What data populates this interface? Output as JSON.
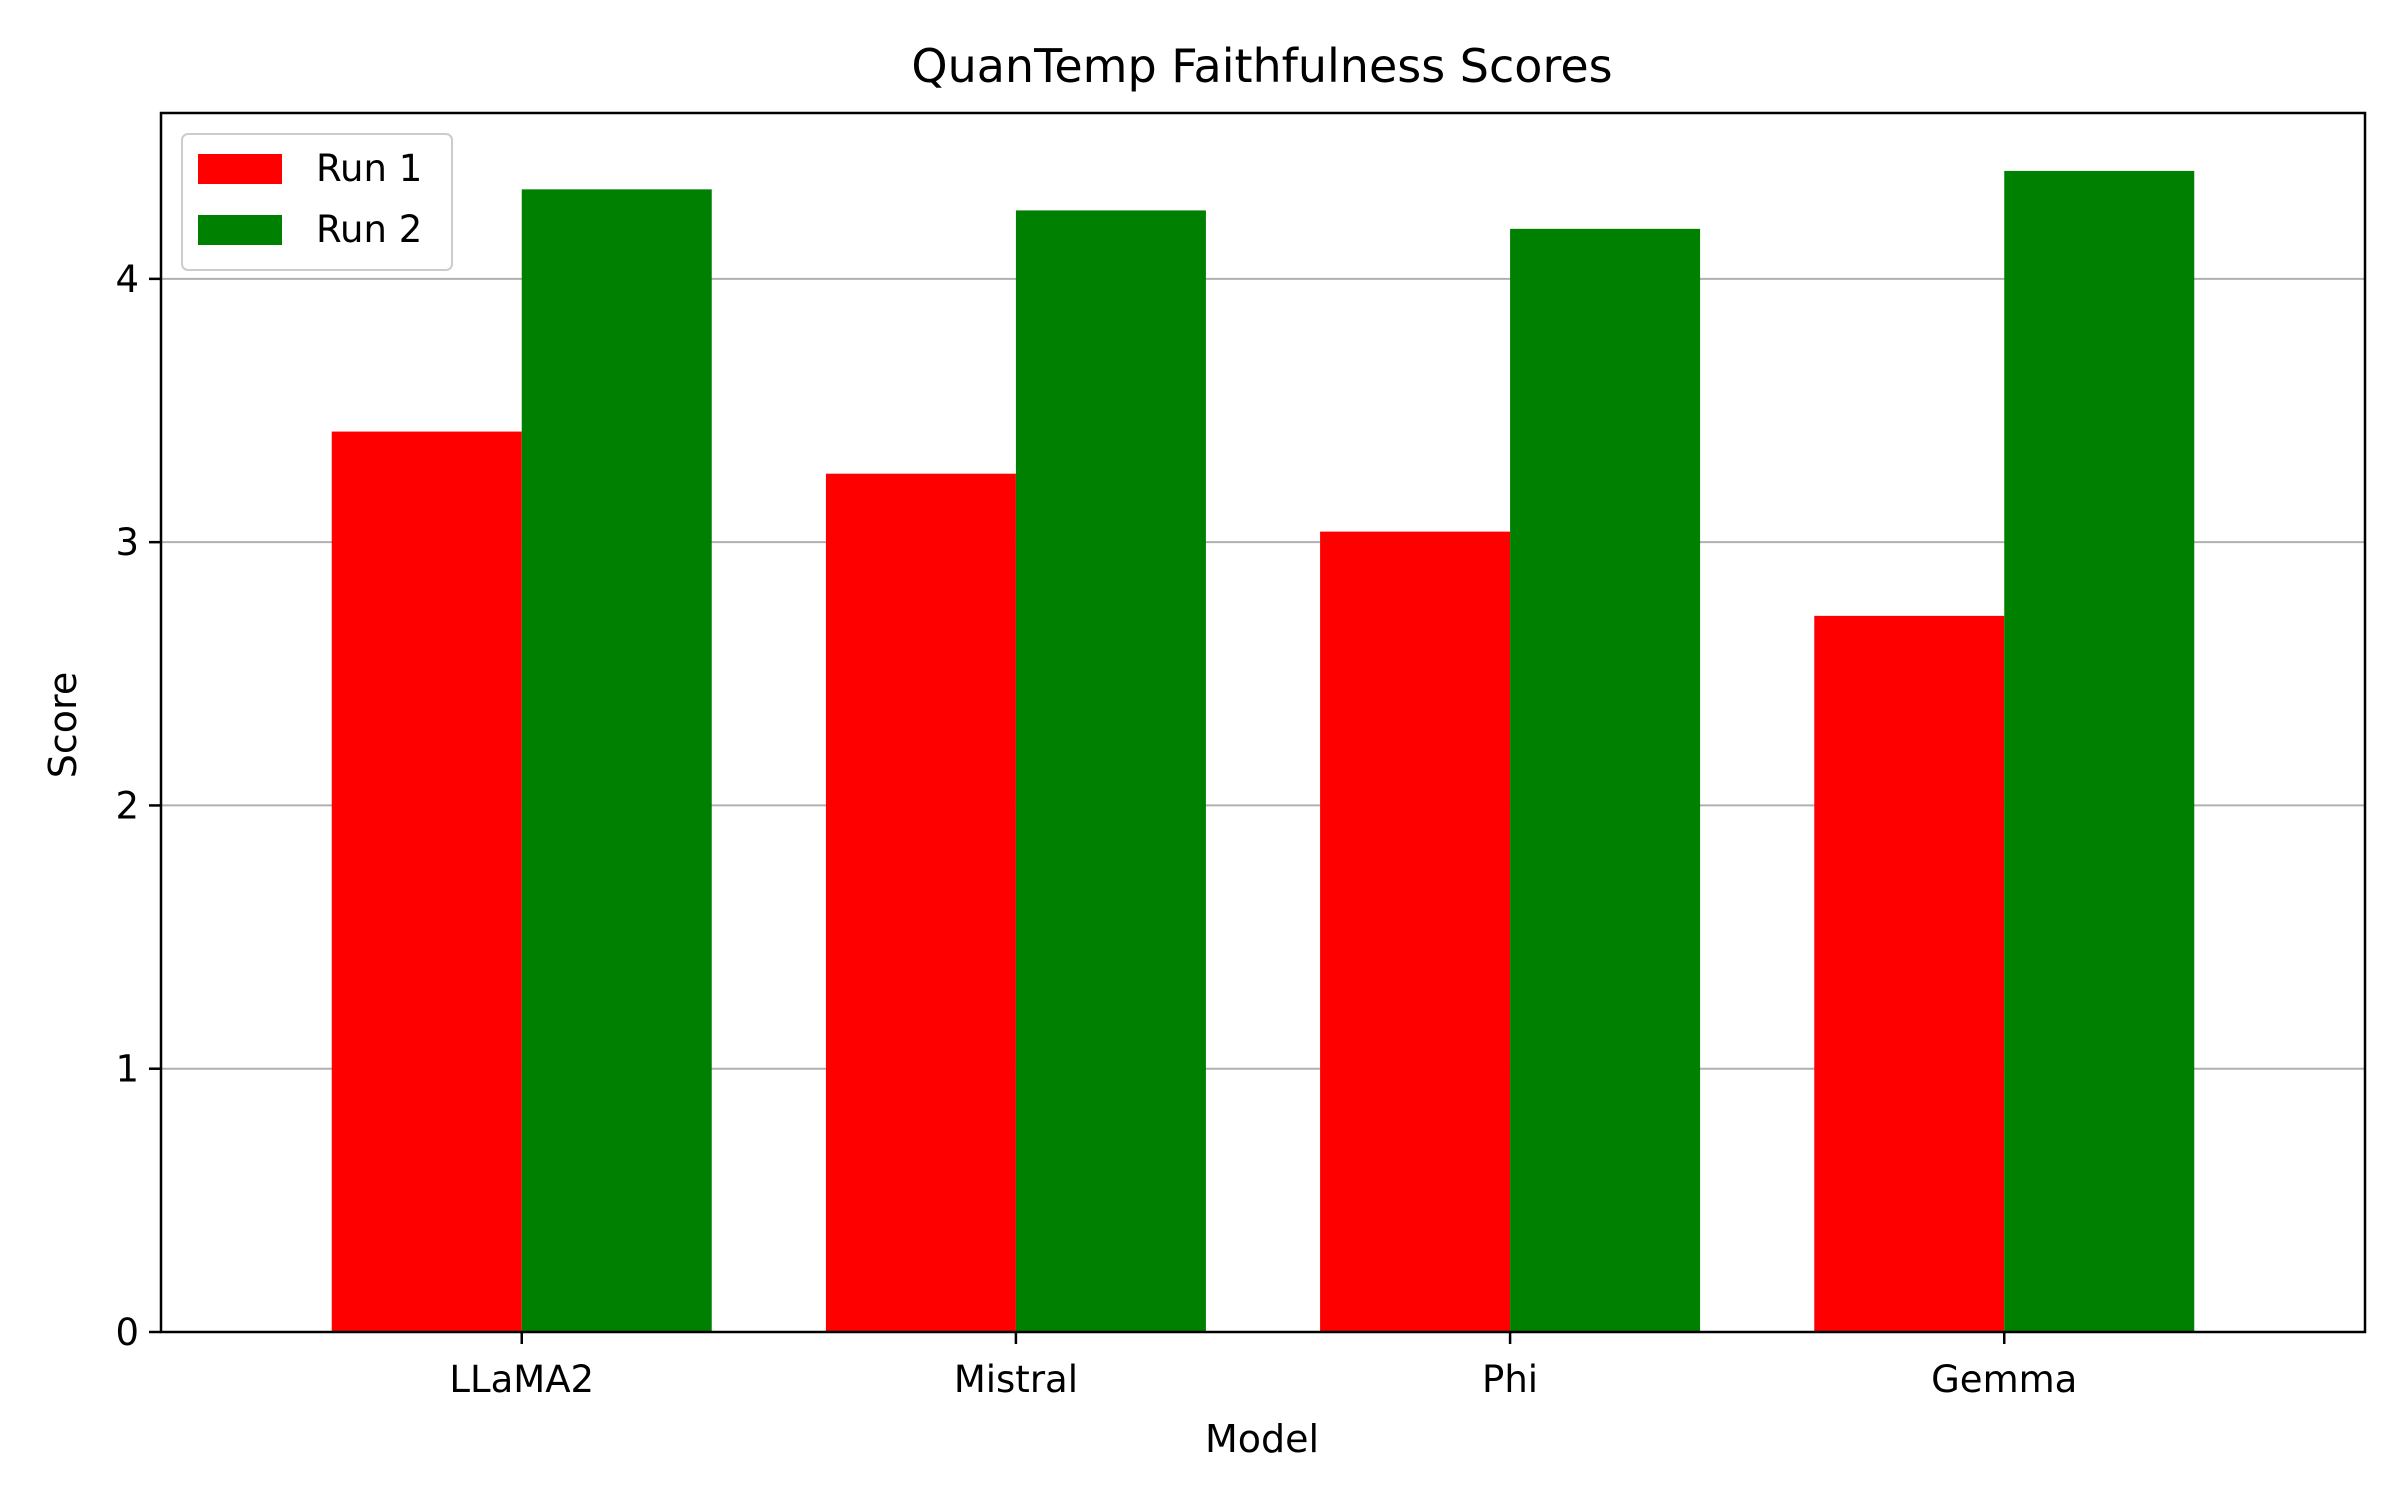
{
  "chart_data": {
    "type": "bar",
    "title": "QuanTemp Faithfulness Scores",
    "xlabel": "Model",
    "ylabel": "Score",
    "categories": [
      "LLaMA2",
      "Mistral",
      "Phi",
      "Gemma"
    ],
    "series": [
      {
        "name": "Run 1",
        "color": "#ff0000",
        "values": [
          3.42,
          3.26,
          3.04,
          2.72
        ]
      },
      {
        "name": "Run 2",
        "color": "#008000",
        "values": [
          4.34,
          4.26,
          4.19,
          4.41
        ]
      }
    ],
    "ylim": [
      0,
      4.63
    ],
    "yticks": [
      0,
      1,
      2,
      3,
      4
    ],
    "grid": "y-major",
    "gridColor": "#b0b0b0",
    "legend_position": "top-left"
  }
}
